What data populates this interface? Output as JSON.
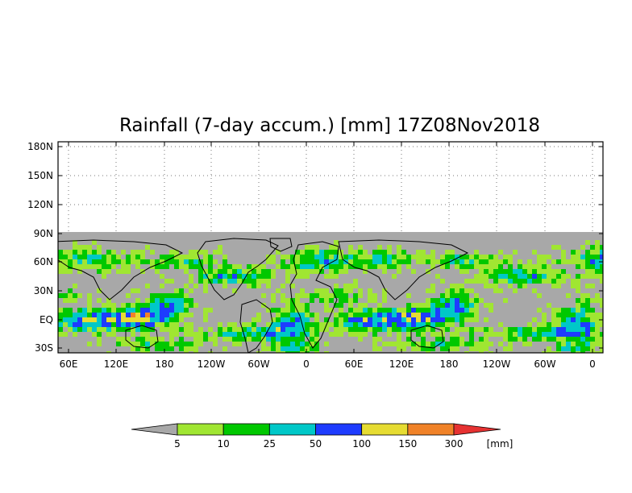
{
  "title": "Rainfall (7-day accum.) [mm] 17Z08Nov2018",
  "map": {
    "lon_tick_labels": [
      "60E",
      "120E",
      "180",
      "120W",
      "60W",
      "0",
      "60E",
      "120E",
      "180",
      "120W",
      "60W",
      "0"
    ],
    "lat_tick_labels": [
      "180N",
      "150N",
      "120N",
      "90N",
      "60N",
      "30N",
      "EQ",
      "30S"
    ],
    "no_data_color": "#a8a8a8"
  },
  "legend": {
    "labels": [
      "5",
      "10",
      "25",
      "50",
      "100",
      "150",
      "300"
    ],
    "unit": "[mm]",
    "colors": [
      "#a8a8a8",
      "#a0e632",
      "#00c800",
      "#00c8c8",
      "#1e3cff",
      "#e6dc32",
      "#f08228",
      "#e63232"
    ]
  }
}
